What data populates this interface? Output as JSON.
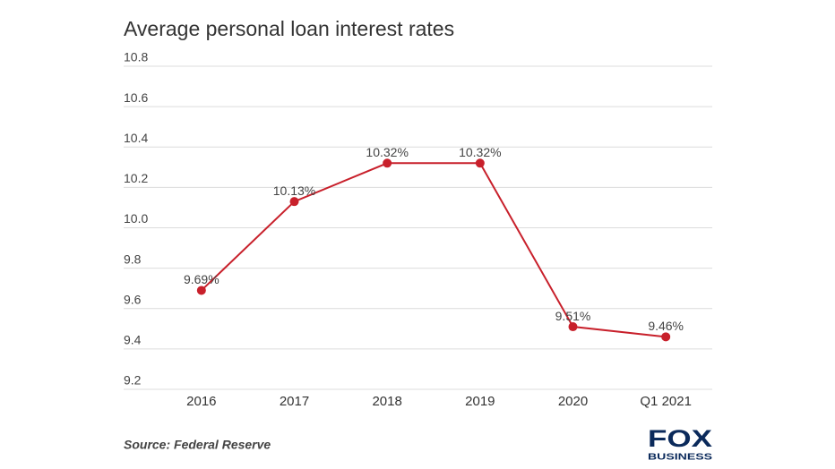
{
  "chart_data": {
    "type": "line",
    "title": "Average personal loan interest rates",
    "categories": [
      "2016",
      "2017",
      "2018",
      "2019",
      "2020",
      "Q1 2021"
    ],
    "values": [
      9.69,
      10.13,
      10.32,
      10.32,
      9.51,
      9.46
    ],
    "value_labels": [
      "9.69%",
      "10.13%",
      "10.32%",
      "10.32%",
      "9.51%",
      "9.46%"
    ],
    "color": "#c8202b",
    "ylim": [
      9.2,
      10.8
    ],
    "yticks": [
      9.2,
      9.4,
      9.6,
      9.8,
      {
        "value": 10,
        "label": "10.0"
      },
      10.2,
      10.4,
      10.6,
      10.8
    ],
    "grid": true,
    "source": "Source: Federal Reserve",
    "logo": [
      "FOX",
      "BUSINESS"
    ]
  }
}
